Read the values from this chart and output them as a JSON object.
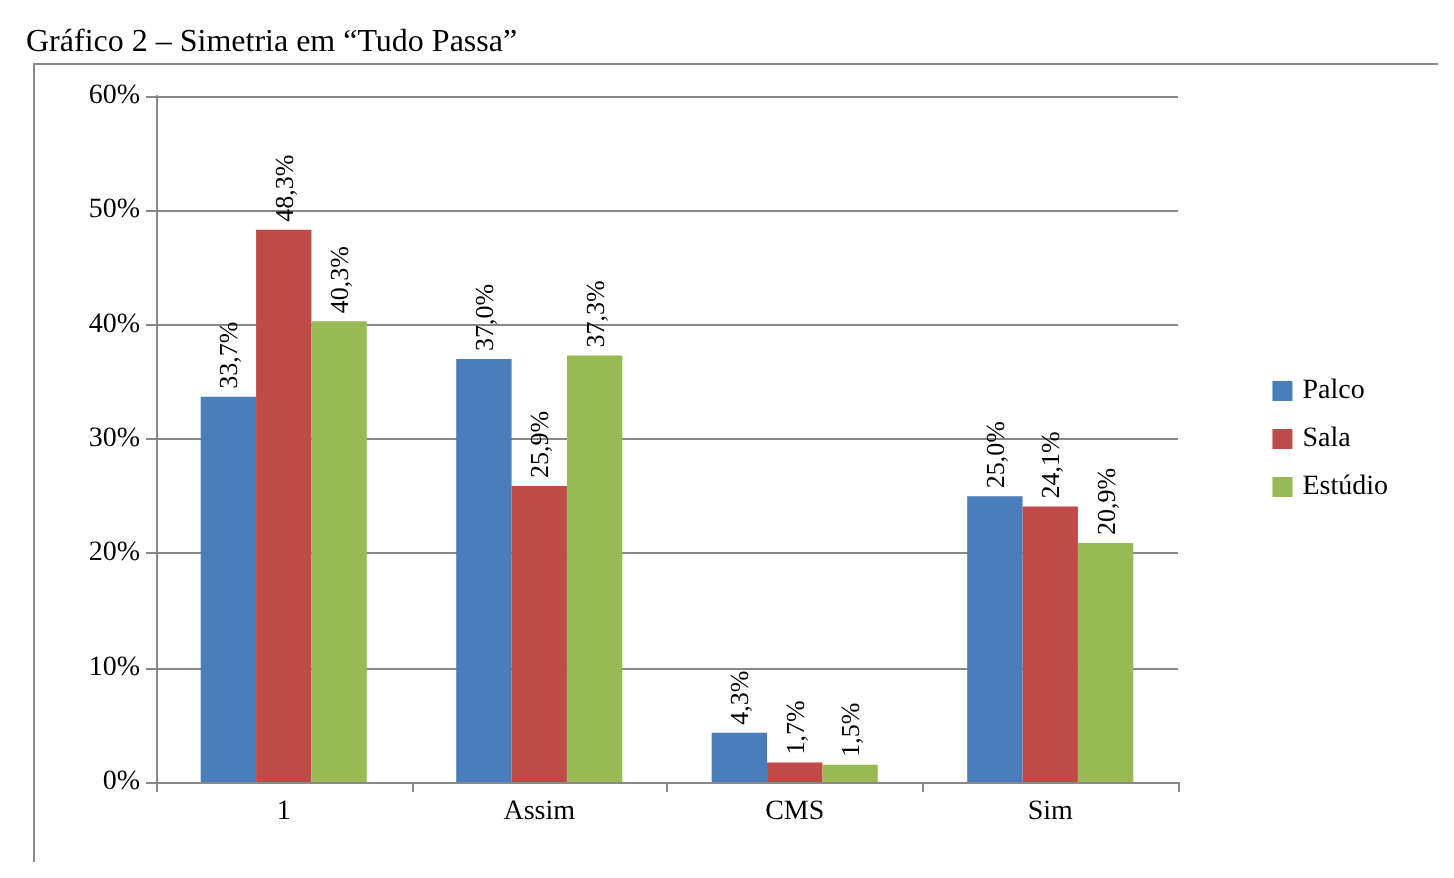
{
  "chart_data": {
    "type": "bar",
    "title": "Gráfico 2 – Simetria em “Tudo Passa”",
    "categories": [
      "1",
      "Assim",
      "CMS",
      "Sim"
    ],
    "series": [
      {
        "name": "Palco",
        "color": "#4a7ebb",
        "values": [
          33.7,
          37.0,
          4.3,
          25.0
        ],
        "value_labels": [
          "33,7%",
          "37,0%",
          "4,3%",
          "25,0%"
        ]
      },
      {
        "name": "Sala",
        "color": "#be4b48",
        "values": [
          48.3,
          25.9,
          1.7,
          24.1
        ],
        "value_labels": [
          "48,3%",
          "25,9%",
          "1,7%",
          "24,1%"
        ]
      },
      {
        "name": "Estúdio",
        "color": "#98b954",
        "values": [
          40.3,
          37.3,
          1.5,
          20.9
        ],
        "value_labels": [
          "40,3%",
          "37,3%",
          "1,5%",
          "20,9%"
        ]
      }
    ],
    "ylim": [
      0,
      60
    ],
    "yticks": [
      {
        "value": 0,
        "label": "0%"
      },
      {
        "value": 10,
        "label": "10%"
      },
      {
        "value": 20,
        "label": "20%"
      },
      {
        "value": 30,
        "label": "30%"
      },
      {
        "value": 40,
        "label": "40%"
      },
      {
        "value": 50,
        "label": "50%"
      },
      {
        "value": 60,
        "label": "60%"
      }
    ],
    "grid": "y",
    "legend": "right"
  }
}
